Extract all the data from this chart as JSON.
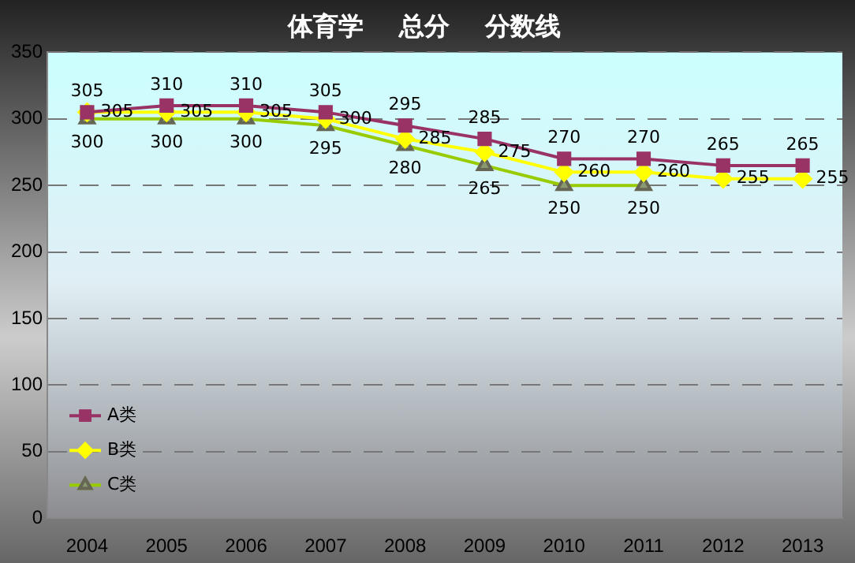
{
  "chart_data": {
    "type": "line",
    "title": "体育学    总分    分数线",
    "categories": [
      "2004",
      "2005",
      "2006",
      "2007",
      "2008",
      "2009",
      "2010",
      "2011",
      "2012",
      "2013"
    ],
    "series": [
      {
        "name": "A类",
        "color": "#993366",
        "marker": "square",
        "values": [
          305,
          310,
          310,
          305,
          295,
          285,
          270,
          270,
          265,
          265
        ],
        "value_labels": [
          "305",
          "310",
          "310",
          "305",
          "295",
          "285",
          "270",
          "270",
          "265",
          "265"
        ]
      },
      {
        "name": "B类",
        "color": "#ffff00",
        "marker": "diamond",
        "values": [
          305,
          305,
          305,
          300,
          285,
          275,
          260,
          260,
          255,
          255
        ],
        "value_labels": [
          "305",
          "305",
          "305",
          "300",
          "285",
          "275",
          "260",
          "260",
          "255",
          "255"
        ]
      },
      {
        "name": "C类",
        "color": "#99cc00",
        "marker": "triangle",
        "values": [
          300,
          300,
          300,
          295,
          280,
          265,
          250,
          250,
          null,
          null
        ],
        "value_labels": [
          "300",
          "300",
          "300",
          "295",
          "280",
          "265",
          "250",
          "250",
          null,
          null
        ]
      }
    ],
    "ylim": [
      0,
      350
    ],
    "yticks": [
      0,
      50,
      100,
      150,
      200,
      250,
      300,
      350
    ],
    "grid": "y",
    "legend": "bottom left"
  }
}
